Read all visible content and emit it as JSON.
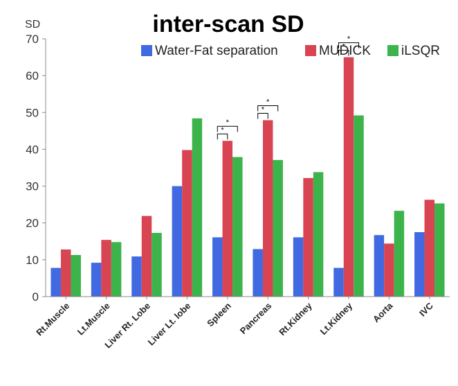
{
  "chart_data": {
    "type": "bar",
    "title": "inter-scan SD",
    "ylabel": "SD",
    "xlabel": "",
    "ylim": [
      0,
      70
    ],
    "yticks": [
      0,
      10,
      20,
      30,
      40,
      50,
      60,
      70
    ],
    "grid": false,
    "legend_position": "top-right",
    "categories": [
      "Rt.Muscle",
      "Lt.Muscle",
      "Liver Rt. Lobe",
      "Liver Lt. lobe",
      "Spleen",
      "Pancreas",
      "Rt.Kidney",
      "Lt.Kidney",
      "Aorta",
      "IVC"
    ],
    "series": [
      {
        "name": "Water-Fat separation",
        "color": "#4169e1",
        "values": [
          7.8,
          9.2,
          10.9,
          30.0,
          16.1,
          12.9,
          16.1,
          7.8,
          16.7,
          17.5
        ]
      },
      {
        "name": "MUDICK",
        "color": "#d94452",
        "values": [
          12.8,
          15.4,
          21.9,
          39.8,
          42.3,
          47.9,
          32.2,
          65.0,
          14.4,
          26.3
        ]
      },
      {
        "name": "iLSQR",
        "color": "#3cb44b",
        "values": [
          11.3,
          14.8,
          17.3,
          48.4,
          37.9,
          37.1,
          33.8,
          49.2,
          23.3,
          25.3
        ]
      }
    ],
    "significance": [
      {
        "category": "Spleen",
        "from": 0,
        "to": 1,
        "level": 1,
        "label": "*"
      },
      {
        "category": "Spleen",
        "from": 0,
        "to": 2,
        "level": 2,
        "label": "*"
      },
      {
        "category": "Pancreas",
        "from": 0,
        "to": 1,
        "level": 1,
        "label": "*"
      },
      {
        "category": "Pancreas",
        "from": 0,
        "to": 2,
        "level": 2,
        "label": "*"
      },
      {
        "category": "Lt.Kidney",
        "from": 0,
        "to": 1,
        "level": 1,
        "label": "*"
      },
      {
        "category": "Lt.Kidney",
        "from": 0,
        "to": 2,
        "level": 2,
        "label": "*"
      }
    ]
  }
}
